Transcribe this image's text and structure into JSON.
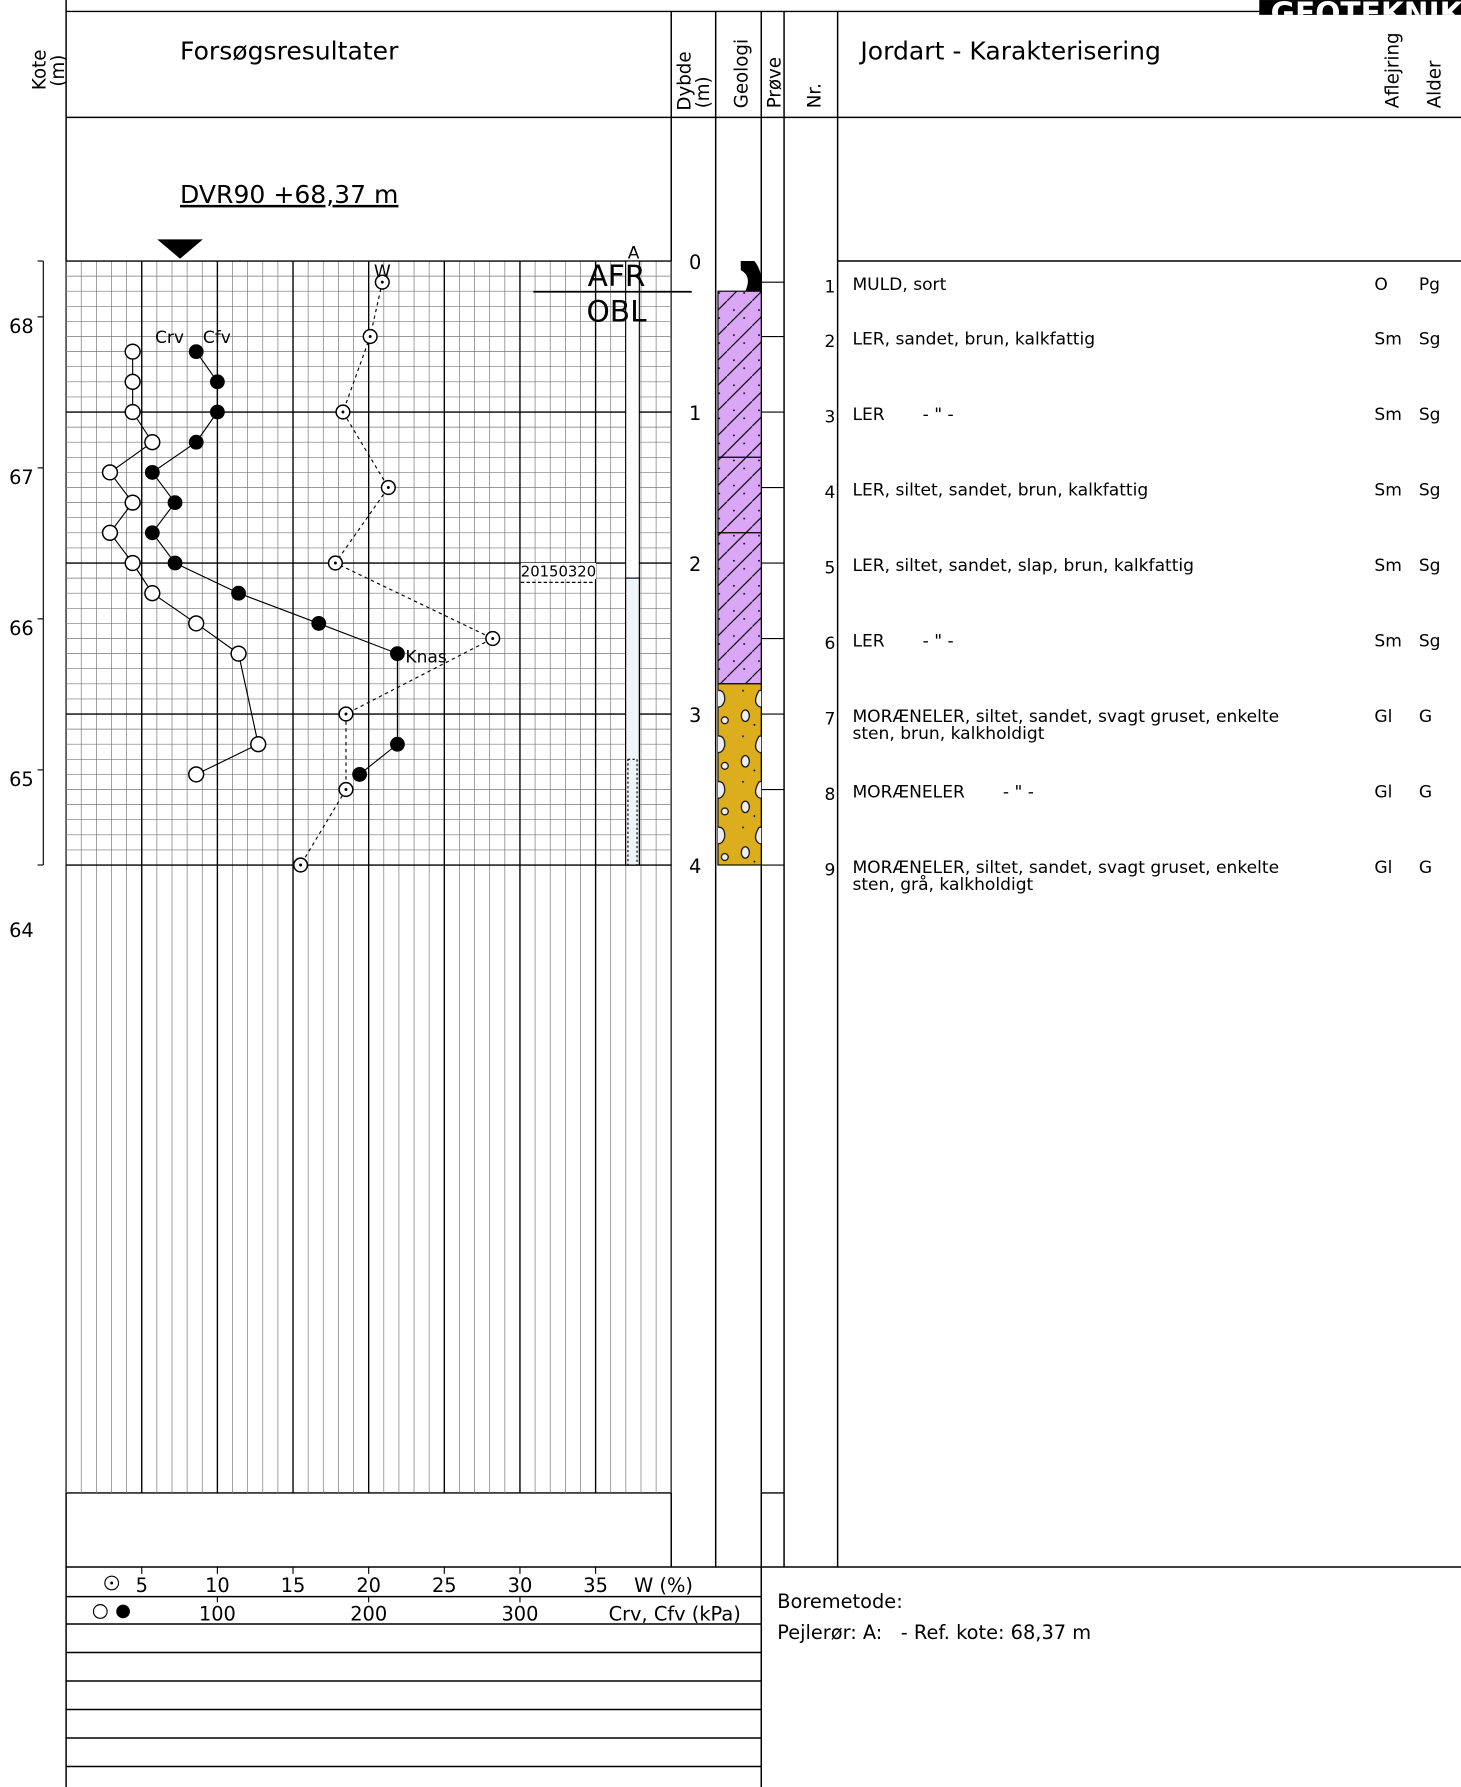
{
  "logo": "GEOTEKNIK",
  "header": {
    "elevation": [
      "Kote",
      "(m)"
    ],
    "results": "Forsøgsresultater",
    "depth": [
      "Dybde",
      "(m)"
    ],
    "geology": "Geologi",
    "sample": "Prøve",
    "nr": "Nr.",
    "description": "Jordart - Karakterisering",
    "deposit": "Aflejring",
    "age": "Alder"
  },
  "reference": {
    "label": "DVR90 +68,37 m",
    "elevation": 68.37
  },
  "plot": {
    "depth_lim": [
      0,
      4
    ],
    "depth_ticks": [
      0,
      1,
      2,
      3,
      4
    ],
    "elevation_ticks": [
      68,
      67,
      66,
      65,
      64
    ],
    "w_lim": [
      0,
      40
    ],
    "w_ticks": [
      5,
      10,
      15,
      20,
      25,
      30,
      35
    ],
    "w_axis_label": "W (%)",
    "strength_lim": [
      0,
      400
    ],
    "strength_ticks": [
      100,
      200,
      300
    ],
    "strength_axis_label": "Crv, Cfv (kPa)",
    "w": {
      "name": "W",
      "depths": [
        0.14,
        0.5,
        1.0,
        1.5,
        2.0,
        2.5,
        3.0,
        3.5,
        4.0
      ],
      "values": [
        20.9,
        20.1,
        18.3,
        21.3,
        17.8,
        28.2,
        18.5,
        18.5,
        15.5
      ]
    },
    "crv": {
      "name": "Crv",
      "depths": [
        0.6,
        0.8,
        1.0,
        1.2,
        1.4,
        1.6,
        1.8,
        2.0,
        2.2,
        2.4,
        2.6,
        3.2,
        3.4
      ],
      "values": [
        44,
        44,
        44,
        57,
        29,
        44,
        29,
        44,
        57,
        86,
        114,
        127,
        86
      ]
    },
    "cfv": {
      "name": "Cfv",
      "depths": [
        0.6,
        0.8,
        1.0,
        1.2,
        1.4,
        1.6,
        1.8,
        2.0,
        2.2,
        2.4,
        2.6,
        3.2,
        3.4
      ],
      "values": [
        86,
        100,
        100,
        86,
        57,
        72,
        57,
        72,
        114,
        167,
        219,
        219,
        194
      ]
    },
    "remark": {
      "label": "Knas",
      "depth": 2.6,
      "value": 219
    }
  },
  "piezometer": {
    "name": "A",
    "labels": [
      "AFR",
      "OBL"
    ],
    "date": "20150320",
    "filter_top": 2.1,
    "screen_top": 3.3
  },
  "layers": [
    {
      "from": 0,
      "to": 0.2,
      "color": "#000000",
      "pattern": "solid"
    },
    {
      "from": 0.2,
      "to": 1.3,
      "color": "#d9a7f5",
      "pattern": "hatch"
    },
    {
      "from": 1.3,
      "to": 1.8,
      "color": "#d9a7f5",
      "pattern": "hatch"
    },
    {
      "from": 1.8,
      "to": 2.8,
      "color": "#d9a7f5",
      "pattern": "hatch"
    },
    {
      "from": 2.8,
      "to": 4,
      "color": "#dcae1d",
      "pattern": "stones"
    }
  ],
  "samples": [
    {
      "nr": "1",
      "depth": 0.14,
      "text": [
        "MULD, sort"
      ],
      "deposit": "O",
      "age": "Pg"
    },
    {
      "nr": "2",
      "depth": 0.5,
      "text": [
        "LER, sandet, brun, kalkfattig"
      ],
      "deposit": "Sm",
      "age": "Sg"
    },
    {
      "nr": "3",
      "depth": 1.0,
      "text": [
        "LER       - \" -"
      ],
      "deposit": "Sm",
      "age": "Sg"
    },
    {
      "nr": "4",
      "depth": 1.5,
      "text": [
        "LER, siltet, sandet, brun, kalkfattig"
      ],
      "deposit": "Sm",
      "age": "Sg"
    },
    {
      "nr": "5",
      "depth": 2.0,
      "text": [
        "LER, siltet, sandet, slap, brun, kalkfattig"
      ],
      "deposit": "Sm",
      "age": "Sg"
    },
    {
      "nr": "6",
      "depth": 2.5,
      "text": [
        "LER       - \" -"
      ],
      "deposit": "Sm",
      "age": "Sg"
    },
    {
      "nr": "7",
      "depth": 3.0,
      "text": [
        "MORÆNELER, siltet, sandet, svagt gruset, enkelte",
        "sten, brun, kalkholdigt"
      ],
      "deposit": "Gl",
      "age": "G"
    },
    {
      "nr": "8",
      "depth": 3.5,
      "text": [
        "MORÆNELER       - \" -"
      ],
      "deposit": "Gl",
      "age": "G"
    },
    {
      "nr": "9",
      "depth": 4.0,
      "text": [
        "MORÆNELER, siltet, sandet, svagt gruset, enkelte",
        "sten, grå, kalkholdigt"
      ],
      "deposit": "Gl",
      "age": "G"
    }
  ],
  "footer": {
    "method": "Boremetode:",
    "pipe": "Pejlerør: A:   - Ref. kote: 68,37 m"
  }
}
